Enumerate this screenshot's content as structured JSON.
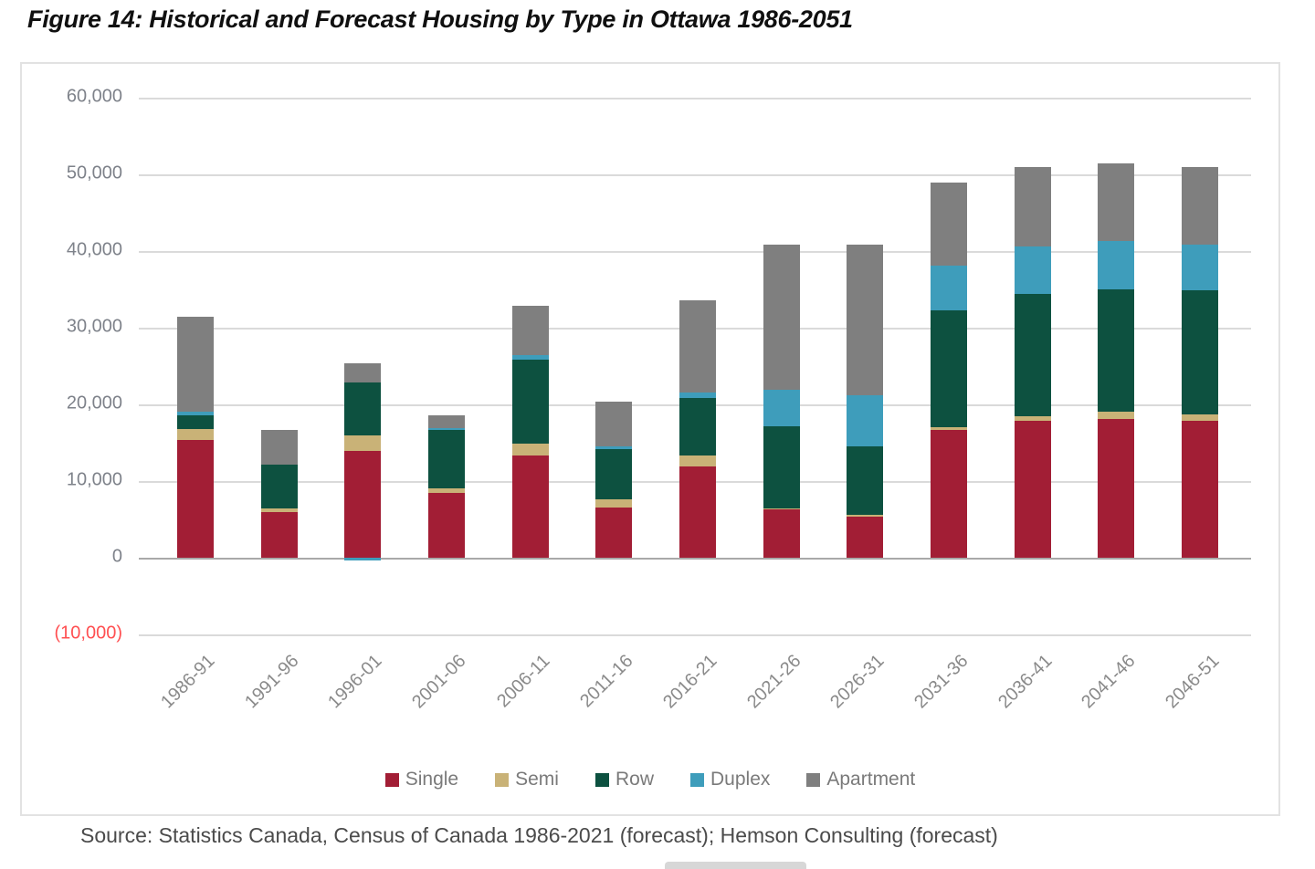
{
  "title": "Figure 14: Historical and Forecast Housing by Type in Ottawa 1986-2051",
  "source": "Source: Statistics Canada, Census of Canada 1986-2021 (forecast); Hemson Consulting (forecast)",
  "colors": {
    "single": "#A21E35",
    "semi": "#C9B277",
    "row": "#0D5140",
    "duplex": "#3E9DBB",
    "apartment": "#7F7F7F",
    "negative_tick": "#FF5052",
    "tick_label": "#7E828A",
    "gridline": "#DADADA",
    "axis_line": "#A9A9A9"
  },
  "chart_data": {
    "type": "bar",
    "stacked": true,
    "title": "Figure 14: Historical and Forecast Housing by Type in Ottawa 1986-2051",
    "xlabel": "",
    "ylabel": "",
    "grid": true,
    "legend_position": "bottom",
    "ylim": [
      -10000,
      60000
    ],
    "categories": [
      "1986-91",
      "1991-96",
      "1996-01",
      "2001-06",
      "2006-11",
      "2011-16",
      "2016-21",
      "2021-26",
      "2026-31",
      "2031-36",
      "2036-41",
      "2041-46",
      "2046-51"
    ],
    "series": [
      {
        "name": "Single",
        "color_key": "single",
        "values": [
          15300,
          6000,
          13900,
          8500,
          13300,
          6600,
          11900,
          6300,
          5400,
          16700,
          17900,
          18100,
          17900
        ]
      },
      {
        "name": "Semi",
        "color_key": "semi",
        "values": [
          1450,
          400,
          2100,
          600,
          1600,
          1000,
          1450,
          150,
          200,
          300,
          600,
          900,
          800
        ]
      },
      {
        "name": "Row",
        "color_key": "row",
        "values": [
          1800,
          5700,
          6900,
          7600,
          10900,
          6600,
          7500,
          10700,
          8900,
          15300,
          15900,
          16000,
          16200
        ]
      },
      {
        "name": "Duplex",
        "color_key": "duplex",
        "values": [
          500,
          0,
          -400,
          200,
          600,
          300,
          700,
          4700,
          6700,
          5800,
          6200,
          6300,
          5900
        ]
      },
      {
        "name": "Apartment",
        "color_key": "apartment",
        "values": [
          12400,
          4600,
          2500,
          1700,
          6500,
          5900,
          12000,
          19000,
          19600,
          10800,
          10400,
          10100,
          10200
        ]
      }
    ],
    "yticks": [
      {
        "value": 60000,
        "label": "60,000"
      },
      {
        "value": 50000,
        "label": "50,000"
      },
      {
        "value": 40000,
        "label": "40,000"
      },
      {
        "value": 30000,
        "label": "30,000"
      },
      {
        "value": 20000,
        "label": "20,000"
      },
      {
        "value": 10000,
        "label": "10,000"
      },
      {
        "value": 0,
        "label": "0"
      },
      {
        "value": -10000,
        "label": "(10,000)",
        "negative": true
      }
    ]
  }
}
